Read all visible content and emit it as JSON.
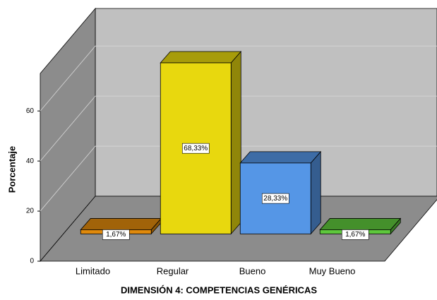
{
  "chart_data": {
    "type": "bar3d",
    "x_label": "DIMENSIÓN 4: COMPETENCIAS GENÉRICAS",
    "y_label": "Porcentaje",
    "categories": [
      "Limitado",
      "Regular",
      "Bueno",
      "Muy Bueno"
    ],
    "values": [
      1.67,
      68.33,
      28.33,
      1.67
    ],
    "value_labels": [
      "1,67%",
      "68,33%",
      "28,33%",
      "1,67%"
    ],
    "colors": [
      "#e08a0c",
      "#e8d80e",
      "#5596e6",
      "#5ec83c"
    ],
    "ylim": [
      0,
      75
    ],
    "yticks": [
      0,
      20,
      40,
      60
    ],
    "grid": true
  }
}
